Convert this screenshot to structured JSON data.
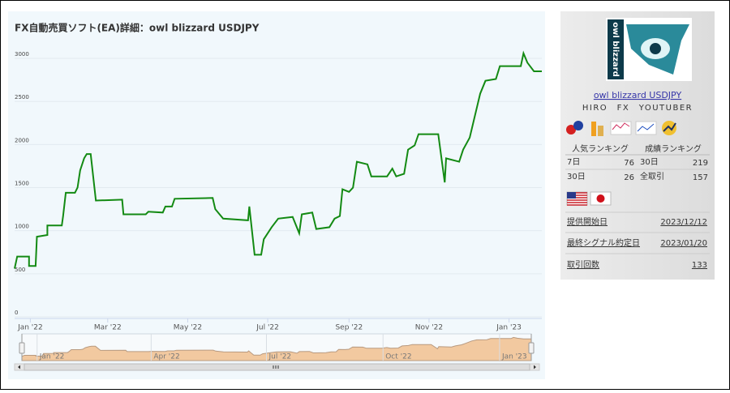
{
  "chart_data": {
    "type": "line",
    "title": "FX自動売買ソフト(EA)詳細：owl blizzard USDJPY",
    "series": [
      {
        "name": "owl blizzard USDJPY",
        "color": "#138a13",
        "x": [
          -12,
          -10,
          -1,
          -1,
          4,
          5,
          13,
          13,
          24,
          25,
          27,
          34,
          36,
          38,
          41,
          43,
          46,
          50,
          70,
          71,
          88,
          90,
          101,
          103,
          108,
          110,
          139,
          141,
          147,
          166,
          167,
          171,
          176,
          178,
          184,
          189,
          200,
          205,
          207,
          215,
          218,
          228,
          232,
          236,
          238,
          243,
          246,
          249,
          257,
          260,
          272,
          276,
          279,
          285,
          288,
          293,
          296,
          311,
          316,
          317,
          327,
          330,
          335,
          338,
          343,
          347,
          355,
          358,
          374,
          376,
          379,
          384,
          390
        ],
        "values": [
          560,
          700,
          700,
          590,
          590,
          930,
          950,
          1060,
          1060,
          1170,
          1440,
          1440,
          1500,
          1700,
          1840,
          1890,
          1890,
          1350,
          1360,
          1190,
          1190,
          1220,
          1210,
          1280,
          1280,
          1370,
          1380,
          1250,
          1140,
          1120,
          1280,
          720,
          720,
          900,
          1040,
          1140,
          1160,
          970,
          1190,
          1210,
          1020,
          1040,
          1140,
          1170,
          1480,
          1450,
          1500,
          1800,
          1770,
          1630,
          1630,
          1720,
          1630,
          1660,
          1940,
          1990,
          2120,
          2120,
          1560,
          1840,
          1800,
          1940,
          2080,
          2270,
          2590,
          2740,
          2760,
          2910,
          2910,
          3060,
          2950,
          2850,
          2850
        ]
      }
    ],
    "xlim": [
      -12,
      390
    ],
    "xticks": [
      {
        "value": 0,
        "label": "Jan '22"
      },
      {
        "value": 59,
        "label": "Mar '22"
      },
      {
        "value": 120,
        "label": "May '22"
      },
      {
        "value": 181,
        "label": "Jul '22"
      },
      {
        "value": 243,
        "label": "Sep '22"
      },
      {
        "value": 304,
        "label": "Nov '22"
      },
      {
        "value": 365,
        "label": "Jan '23"
      }
    ],
    "ylim": [
      0,
      3100
    ],
    "yticks": [
      0,
      500,
      1000,
      1500,
      2000,
      2500,
      3000
    ],
    "grid": true,
    "navigator_xticks": [
      {
        "value": 0,
        "label": "Jan '22"
      },
      {
        "value": 90,
        "label": "Apr '22"
      },
      {
        "value": 181,
        "label": "Jul '22"
      },
      {
        "value": 273,
        "label": "Oct '22"
      },
      {
        "value": 365,
        "label": "Jan '23"
      }
    ],
    "navigator_color": "#f2c9a0"
  },
  "sidebar": {
    "logo_text": "owl blizzard",
    "name": "owl blizzard USDJPY",
    "author": "HIRO　FX　YOUTUBER",
    "ranking": {
      "headers": [
        "人気ランキング",
        "成績ランキング"
      ],
      "rows": [
        [
          "7日",
          76,
          "30日",
          219
        ],
        [
          "30日",
          26,
          "全取引",
          157
        ]
      ]
    },
    "info": [
      [
        "提供開始日",
        "2023/12/12"
      ],
      [
        "最終シグナル約定日",
        "2023/01/20"
      ],
      [
        "取引回数",
        133
      ]
    ]
  }
}
